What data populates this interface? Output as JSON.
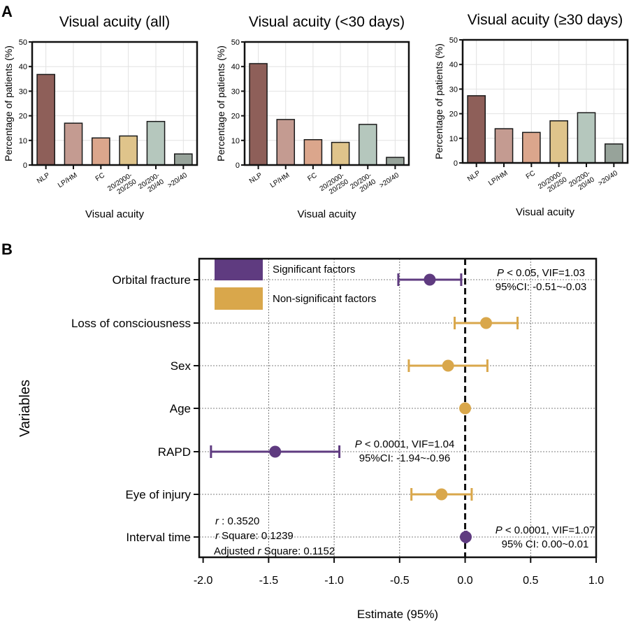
{
  "panel_labels": {
    "a": "A",
    "b": "B"
  },
  "chart_data": [
    {
      "type": "bar",
      "title": "Visual acuity (all)",
      "xlabel": "Visual acuity",
      "ylabel": "Percentage of patients (%)",
      "ylim": [
        0,
        50
      ],
      "yticks": [
        "0",
        "10",
        "20",
        "30",
        "40",
        "50"
      ],
      "grid": true,
      "categories": [
        "NLP",
        "LP/HM",
        "FC",
        "20/2000-\n20/250",
        "20/200-\n20/40",
        ">20/40"
      ],
      "values": [
        36.8,
        17.0,
        11.0,
        11.8,
        17.7,
        4.5
      ],
      "colors": [
        "#8e5f59",
        "#c49b91",
        "#dba68c",
        "#dfc48b",
        "#b5c7bd",
        "#97a39a"
      ]
    },
    {
      "type": "bar",
      "title": "Visual acuity (<30 days)",
      "xlabel": "Visual acuity",
      "ylabel": "Percentage of patients (%)",
      "ylim": [
        0,
        50
      ],
      "yticks": [
        "0",
        "10",
        "20",
        "30",
        "40",
        "50"
      ],
      "grid": true,
      "categories": [
        "NLP",
        "LP/HM",
        "FC",
        "20/2000-\n20/250",
        "20/200-\n20/40",
        ">20/40"
      ],
      "values": [
        41.2,
        18.5,
        10.3,
        9.2,
        16.5,
        3.1
      ],
      "colors": [
        "#8e5f59",
        "#c49b91",
        "#dba68c",
        "#dfc48b",
        "#b5c7bd",
        "#97a39a"
      ]
    },
    {
      "type": "bar",
      "title": "Visual acuity (≥30 days)",
      "xlabel": "Visual acuity",
      "ylabel": "Percentage of patients (%)",
      "ylim": [
        0,
        50
      ],
      "yticks": [
        "0",
        "10",
        "20",
        "30",
        "40",
        "50"
      ],
      "grid": true,
      "categories": [
        "NLP",
        "LP/HM",
        "FC",
        "20/2000-\n20/250",
        "20/200-\n20/40",
        ">20/40"
      ],
      "values": [
        27.3,
        13.9,
        12.4,
        17.1,
        20.4,
        7.7
      ],
      "colors": [
        "#8e5f59",
        "#c49b91",
        "#dba68c",
        "#dfc48b",
        "#b5c7bd",
        "#97a39a"
      ]
    },
    {
      "type": "scatter",
      "subtype": "forest",
      "xlabel": "Estimate (95%)",
      "ylabel": "Variables",
      "xlim": [
        -2.0,
        1.0
      ],
      "xticks": [
        "-2.0",
        "-1.5",
        "-1.0",
        "-0.5",
        "0.0",
        "0.5",
        "1.0"
      ],
      "reference_line": 0,
      "grid": true,
      "legend_position": "top-left",
      "legend": [
        {
          "label": "Significant factors",
          "color": "#5f3b80"
        },
        {
          "label": "Non-significant factors",
          "color": "#d9a74b"
        }
      ],
      "rows": [
        {
          "label": "Orbital fracture",
          "estimate": -0.27,
          "low": -0.51,
          "high": -0.03,
          "significant": true,
          "annotation": {
            "p": "P",
            "line1": " < 0.05, VIF=1.03",
            "line2": "95%CI: -0.51~-0.03"
          }
        },
        {
          "label": "Loss of consciousness",
          "estimate": 0.16,
          "low": -0.08,
          "high": 0.4,
          "significant": false
        },
        {
          "label": "Sex",
          "estimate": -0.13,
          "low": -0.43,
          "high": 0.17,
          "significant": false
        },
        {
          "label": "Age",
          "estimate": 0.0,
          "low": 0.0,
          "high": 0.0,
          "significant": false
        },
        {
          "label": "RAPD",
          "estimate": -1.45,
          "low": -1.94,
          "high": -0.96,
          "significant": true,
          "annotation": {
            "p": "P",
            "line1": " < 0.0001, VIF=1.04",
            "line2": "95%CI: -1.94~-0.96"
          }
        },
        {
          "label": "Eye of injury",
          "estimate": -0.18,
          "low": -0.41,
          "high": 0.05,
          "significant": false
        },
        {
          "label": "Interval time",
          "estimate": 0.005,
          "low": 0.0,
          "high": 0.01,
          "significant": true,
          "annotation": {
            "p": "P",
            "line1": " < 0.0001, VIF=1.07",
            "line2": "95% CI: 0.00~0.01"
          }
        }
      ],
      "stats": {
        "r_symbol": "r",
        "r_text": " : 0.3520",
        "r2_text": "  Square: 0.1239",
        "adj_prefix": "Adjusted ",
        "adj_text": "  Square: 0.1152"
      }
    }
  ]
}
